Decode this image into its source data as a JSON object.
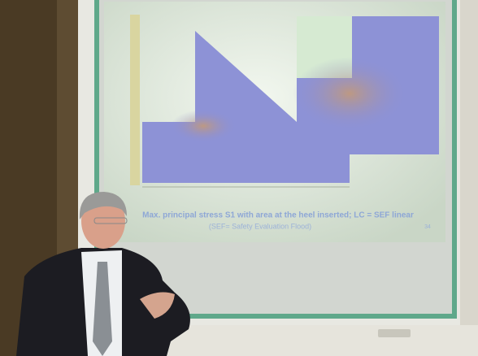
{
  "slide": {
    "caption": "Max. principal stress S1 with area at the heel inserted; LC = SEF linear",
    "subcaption": "(SEF= Safety Evaluation Flood)",
    "page_number": "34"
  }
}
